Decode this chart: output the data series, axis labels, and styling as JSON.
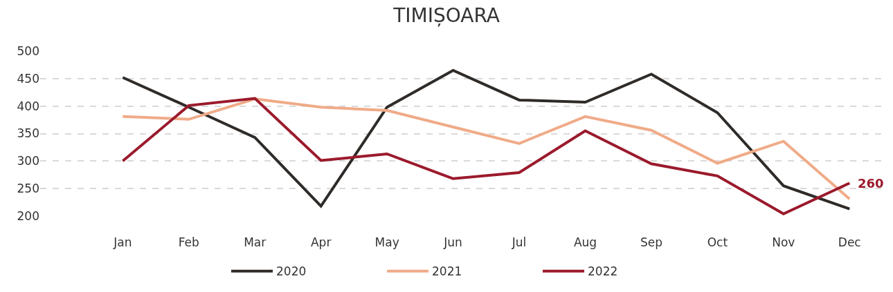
{
  "chart_data": {
    "type": "line",
    "title": "TIMIȘOARA",
    "categories": [
      "Jan",
      "Feb",
      "Mar",
      "Apr",
      "May",
      "Jun",
      "Jul",
      "Aug",
      "Sep",
      "Oct",
      "Nov",
      "Dec"
    ],
    "series": [
      {
        "name": "2020",
        "color": "#2f2b28",
        "values": [
          452,
          398,
          343,
          218,
          398,
          465,
          411,
          407,
          458,
          388,
          255,
          213
        ]
      },
      {
        "name": "2021",
        "color": "#f0ab88",
        "values": [
          381,
          376,
          413,
          398,
          392,
          362,
          332,
          381,
          356,
          296,
          336,
          231
        ]
      },
      {
        "name": "2022",
        "color": "#9b1a2c",
        "values": [
          300,
          401,
          414,
          301,
          313,
          268,
          279,
          355,
          295,
          273,
          204,
          260
        ],
        "value_labels": [
          null,
          null,
          null,
          null,
          null,
          null,
          null,
          null,
          null,
          null,
          null,
          "260"
        ]
      }
    ],
    "ylim": [
      200,
      500
    ],
    "yticks": [
      200,
      250,
      300,
      350,
      400,
      450,
      500
    ],
    "grid": "y",
    "legend": "bottom",
    "marker": "none",
    "line_style": "solid"
  }
}
